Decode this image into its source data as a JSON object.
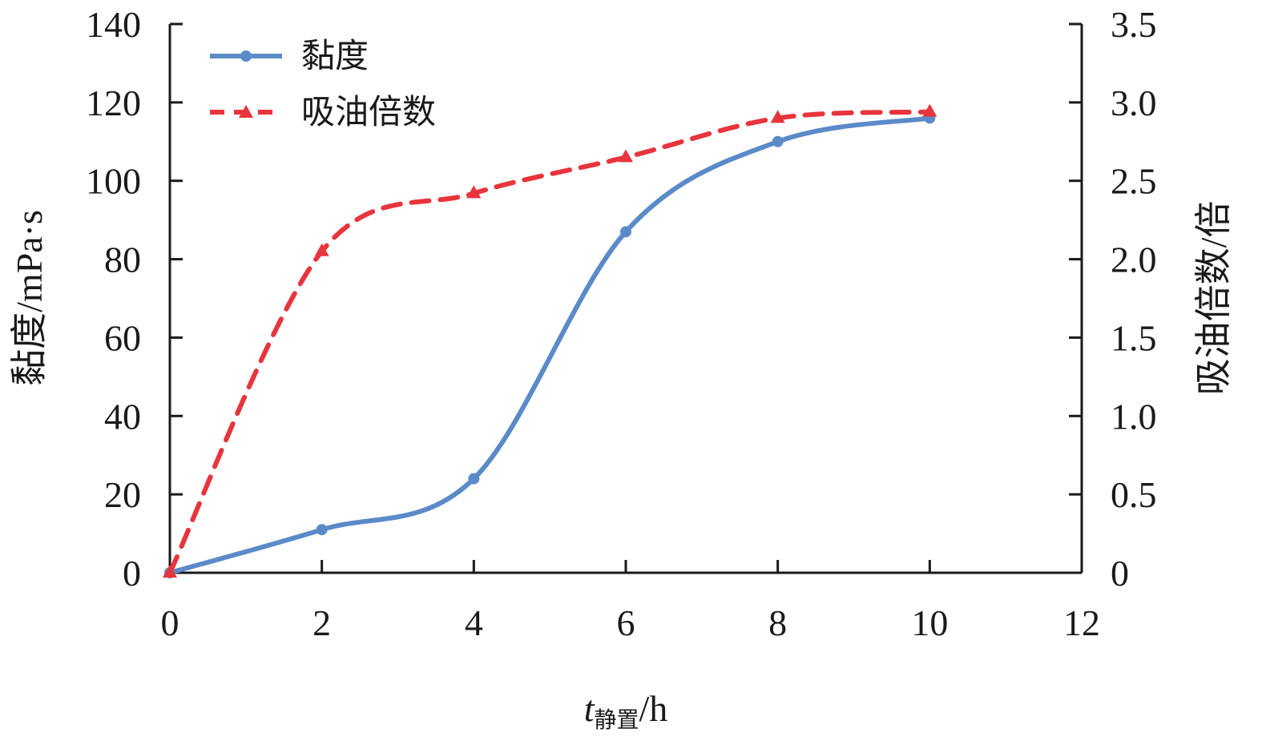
{
  "chart_data": {
    "type": "line",
    "x": [
      0,
      2,
      4,
      6,
      8,
      10
    ],
    "xlim": [
      0,
      12
    ],
    "x_ticks": [
      "0",
      "2",
      "4",
      "6",
      "8",
      "10",
      "12"
    ],
    "xlabel": {
      "var": "t",
      "sub": "静置",
      "unit": "/h"
    },
    "ylabel_left": "黏度/mPa·s",
    "ylim_left": [
      0,
      140
    ],
    "y_ticks_left": [
      "0",
      "20",
      "40",
      "60",
      "80",
      "100",
      "120",
      "140"
    ],
    "ylabel_right": "吸油倍数/倍",
    "ylim_right": [
      0,
      3.5
    ],
    "y_ticks_right": [
      "0",
      "0.5",
      "1.0",
      "1.5",
      "2.0",
      "2.5",
      "3.0",
      "3.5"
    ],
    "legend_position": "top-left",
    "grid": false,
    "series": [
      {
        "name": "黏度",
        "axis": "left",
        "values": [
          0,
          11,
          24,
          87,
          110,
          116
        ],
        "color": "#5b8ac9",
        "line_style": "solid",
        "marker": "circle"
      },
      {
        "name": "吸油倍数",
        "axis": "right",
        "values": [
          0,
          2.05,
          2.42,
          2.65,
          2.9,
          2.94
        ],
        "color": "#e8343c",
        "line_style": "dashed",
        "marker": "triangle"
      }
    ]
  }
}
